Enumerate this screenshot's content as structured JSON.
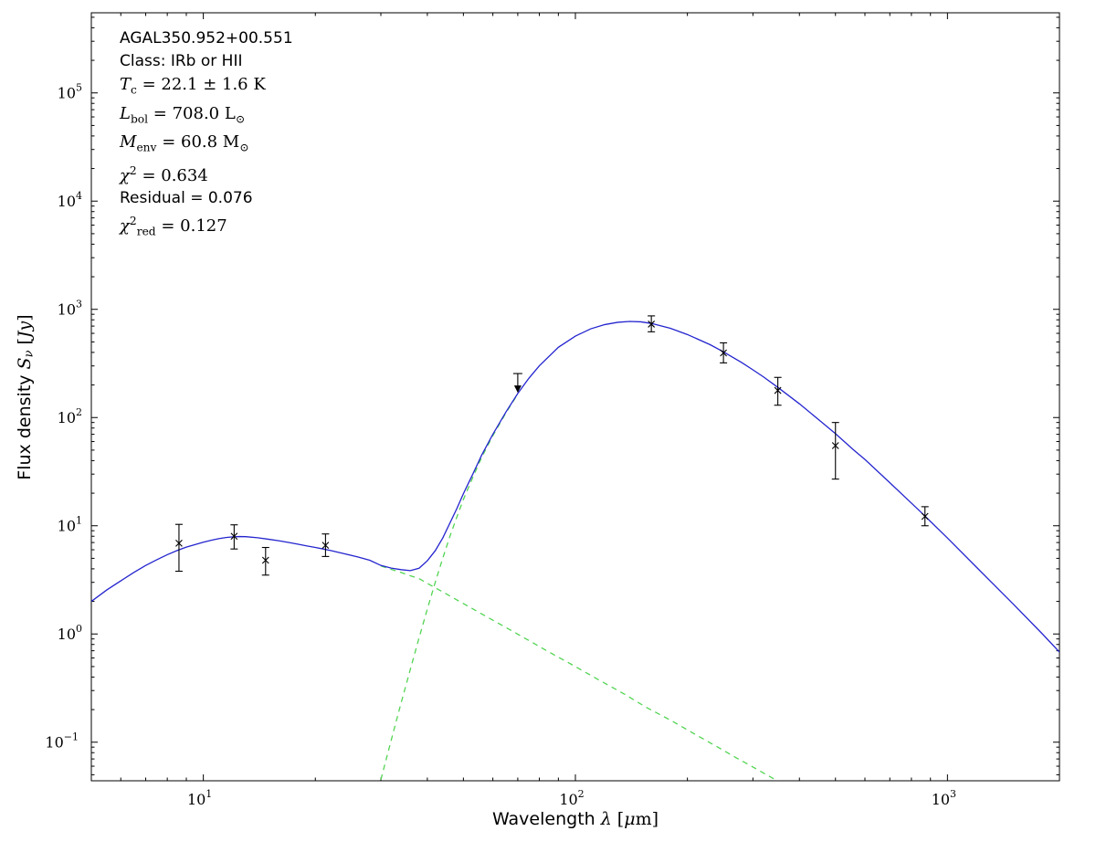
{
  "chart_data": {
    "type": "line",
    "title": "",
    "annotations": [
      {
        "font": "sans",
        "segments": [
          {
            "t": "AGAL350.952+00.551"
          }
        ]
      },
      {
        "font": "sans",
        "segments": [
          {
            "t": "Class: IRb or HII"
          }
        ]
      },
      {
        "font": "serif",
        "segments": [
          {
            "t": "T",
            "style": "it"
          },
          {
            "t": "c",
            "style": "sub"
          },
          {
            "t": " = 22.1 ± 1.6 K"
          }
        ]
      },
      {
        "font": "serif",
        "segments": [
          {
            "t": "L",
            "style": "it"
          },
          {
            "t": "bol",
            "style": "sub"
          },
          {
            "t": " = 708.0 L"
          },
          {
            "t": "⊙",
            "style": "sub"
          }
        ]
      },
      {
        "font": "serif",
        "segments": [
          {
            "t": "M",
            "style": "it"
          },
          {
            "t": "env",
            "style": "sub"
          },
          {
            "t": " = 60.8 M"
          },
          {
            "t": "⊙",
            "style": "sub"
          }
        ]
      },
      {
        "font": "serif",
        "segments": [
          {
            "t": "χ",
            "style": "it"
          },
          {
            "t": "2",
            "style": "sup"
          },
          {
            "t": " = 0.634"
          }
        ]
      },
      {
        "font": "sans",
        "segments": [
          {
            "t": "Residual = 0.076"
          }
        ]
      },
      {
        "font": "serif",
        "segments": [
          {
            "t": "χ",
            "style": "it"
          },
          {
            "t": "2",
            "style": "sup"
          },
          {
            "t": "red",
            "style": "sub"
          },
          {
            "t": " = 0.127"
          }
        ]
      }
    ],
    "x_axis": {
      "label": "Wavelength λ [μm]",
      "label_segments": [
        {
          "t": "Wavelength "
        },
        {
          "t": "λ",
          "style": "serif it"
        },
        {
          "t": " [",
          "style": "serif"
        },
        {
          "t": "μ",
          "style": "serif it"
        },
        {
          "t": "m",
          "style": "serif"
        },
        {
          "t": "]",
          "style": "serif"
        }
      ],
      "scale": "log",
      "min": 5,
      "max": 2000,
      "labeled_exponents": [
        1,
        2,
        3
      ]
    },
    "y_axis": {
      "label": "Flux density Sν [Jy]",
      "label_segments": [
        {
          "t": "Flux density "
        },
        {
          "t": "S",
          "style": "serif it"
        },
        {
          "t": "ν",
          "style": "serif it sub"
        },
        {
          "t": " [",
          "style": "serif"
        },
        {
          "t": "Jy",
          "style": "serif it"
        },
        {
          "t": "]",
          "style": "serif"
        }
      ],
      "scale": "log",
      "min": 0.044,
      "max": 550000,
      "labeled_exponents": [
        -1,
        0,
        1,
        2,
        3,
        4,
        5
      ]
    },
    "grid": false,
    "legend": "none",
    "colors": {
      "total_fit": "#2424cf",
      "components": "#53d453",
      "data": "#000000"
    },
    "series": [
      {
        "name": "model-total-fit",
        "color": "#2424cf",
        "dash": "solid",
        "points": [
          [
            5,
            2.0
          ],
          [
            5.5,
            2.55
          ],
          [
            6,
            3.1
          ],
          [
            6.5,
            3.7
          ],
          [
            7,
            4.3
          ],
          [
            7.5,
            4.85
          ],
          [
            8,
            5.4
          ],
          [
            8.5,
            5.9
          ],
          [
            9,
            6.35
          ],
          [
            9.5,
            6.7
          ],
          [
            10,
            7.05
          ],
          [
            10.5,
            7.35
          ],
          [
            11,
            7.6
          ],
          [
            11.5,
            7.78
          ],
          [
            12,
            7.9
          ],
          [
            12.5,
            7.95
          ],
          [
            13,
            7.93
          ],
          [
            14,
            7.75
          ],
          [
            15,
            7.5
          ],
          [
            16,
            7.25
          ],
          [
            17,
            7.0
          ],
          [
            18,
            6.75
          ],
          [
            19,
            6.5
          ],
          [
            20,
            6.3
          ],
          [
            21,
            6.1
          ],
          [
            22,
            5.9
          ],
          [
            24,
            5.5
          ],
          [
            26,
            5.15
          ],
          [
            28,
            4.8
          ],
          [
            30,
            4.3
          ],
          [
            32,
            4.06
          ],
          [
            34,
            3.93
          ],
          [
            36,
            3.85
          ],
          [
            38,
            4.05
          ],
          [
            40,
            4.75
          ],
          [
            42,
            5.88
          ],
          [
            44,
            7.7
          ],
          [
            46,
            10.6
          ],
          [
            48,
            14.4
          ],
          [
            50,
            19.8
          ],
          [
            53,
            30
          ],
          [
            56,
            45
          ],
          [
            60,
            70
          ],
          [
            65,
            112
          ],
          [
            70,
            167
          ],
          [
            75,
            231
          ],
          [
            80,
            301
          ],
          [
            90,
            446
          ],
          [
            100,
            566
          ],
          [
            110,
            661
          ],
          [
            120,
            723
          ],
          [
            130,
            759
          ],
          [
            140,
            773
          ],
          [
            150,
            766
          ],
          [
            160,
            741
          ],
          [
            180,
            668
          ],
          [
            200,
            585
          ],
          [
            230,
            472
          ],
          [
            250,
            405
          ],
          [
            280,
            322
          ],
          [
            300,
            276
          ],
          [
            320,
            238
          ],
          [
            350,
            190
          ],
          [
            400,
            134
          ],
          [
            450,
            96
          ],
          [
            500,
            71
          ],
          [
            560,
            50
          ],
          [
            600,
            41
          ],
          [
            700,
            25
          ],
          [
            800,
            16.2
          ],
          [
            870,
            12.3
          ],
          [
            1000,
            7.7
          ],
          [
            1200,
            4.1
          ],
          [
            1500,
            1.9
          ],
          [
            1800,
            1.0
          ],
          [
            2000,
            0.68
          ]
        ]
      },
      {
        "name": "hot-component",
        "color": "#53d453",
        "dash": "dashed",
        "points": [
          [
            30,
            4.25
          ],
          [
            32,
            3.95
          ],
          [
            34,
            3.7
          ],
          [
            36,
            3.45
          ],
          [
            38,
            3.25
          ],
          [
            41,
            2.8
          ],
          [
            44,
            2.45
          ],
          [
            47,
            2.15
          ],
          [
            50,
            1.91
          ],
          [
            57,
            1.48
          ],
          [
            65,
            1.15
          ],
          [
            75,
            0.87
          ],
          [
            85,
            0.68
          ],
          [
            100,
            0.5
          ],
          [
            115,
            0.38
          ],
          [
            135,
            0.28
          ],
          [
            155,
            0.21
          ],
          [
            180,
            0.16
          ],
          [
            210,
            0.118
          ],
          [
            240,
            0.091
          ],
          [
            270,
            0.072
          ],
          [
            300,
            0.059
          ],
          [
            330,
            0.049
          ],
          [
            345,
            0.0449
          ],
          [
            360,
            0.0414
          ]
        ]
      },
      {
        "name": "cold-component",
        "color": "#53d453",
        "dash": "dashed",
        "points": [
          [
            30,
            0.045
          ],
          [
            32,
            0.105
          ],
          [
            34,
            0.23
          ],
          [
            36,
            0.47
          ],
          [
            38,
            0.92
          ],
          [
            40,
            1.7
          ],
          [
            42,
            3.0
          ],
          [
            44,
            5.0
          ],
          [
            46,
            8.0
          ],
          [
            48,
            12
          ],
          [
            50,
            17.5
          ],
          [
            53,
            28
          ],
          [
            56,
            43
          ],
          [
            60,
            68
          ],
          [
            65,
            110
          ],
          [
            70,
            165
          ]
        ]
      }
    ],
    "measurements": [
      {
        "x": 8.6,
        "y": 6.9,
        "y_lo": 3.8,
        "y_hi": 10.3
      },
      {
        "x": 12.1,
        "y": 8.0,
        "y_lo": 6.1,
        "y_hi": 10.2
      },
      {
        "x": 14.7,
        "y": 4.8,
        "y_lo": 3.5,
        "y_hi": 6.3
      },
      {
        "x": 21.3,
        "y": 6.6,
        "y_lo": 5.2,
        "y_hi": 8.4
      },
      {
        "x": 160,
        "y": 730,
        "y_lo": 620,
        "y_hi": 870
      },
      {
        "x": 250,
        "y": 395,
        "y_lo": 320,
        "y_hi": 490
      },
      {
        "x": 350,
        "y": 178,
        "y_lo": 130,
        "y_hi": 235
      },
      {
        "x": 500,
        "y": 55,
        "y_lo": 27,
        "y_hi": 90
      },
      {
        "x": 870,
        "y": 12.2,
        "y_lo": 10.0,
        "y_hi": 15.0
      }
    ],
    "upper_limits": [
      {
        "x": 70,
        "y": 255
      }
    ],
    "marker": {
      "type": "x",
      "color": "#000000"
    }
  }
}
